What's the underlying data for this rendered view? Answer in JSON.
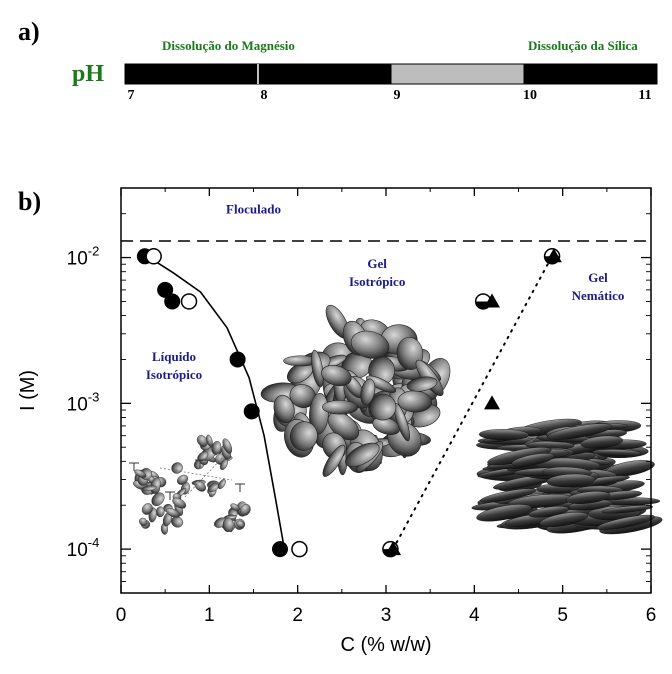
{
  "panel_a": {
    "label": "a)",
    "ph_label": "pH",
    "dissolution_left": "Dissolução do Magnésio",
    "dissolution_right": "Dissolução da Sílica",
    "ticks": [
      "7",
      "8",
      "9",
      "10",
      "11"
    ],
    "segments": [
      {
        "from": 7,
        "to": 8,
        "color": "#000000"
      },
      {
        "from": 8,
        "to": 9,
        "color": "#000000"
      },
      {
        "from": 9,
        "to": 10,
        "color": "#bdbdbd"
      },
      {
        "from": 10,
        "to": 11,
        "color": "#000000"
      }
    ]
  },
  "chart_data": {
    "type": "scatter",
    "panel_label": "b)",
    "xlabel": "C (% w/w)",
    "ylabel": "I (M)",
    "xlim": [
      0,
      6
    ],
    "ylim": [
      5e-05,
      0.03
    ],
    "y_scale": "log",
    "x_ticks": [
      0,
      1,
      2,
      3,
      4,
      5,
      6
    ],
    "x_tick_labels": [
      "0",
      "1",
      "2",
      "3",
      "4",
      "5",
      "6"
    ],
    "y_ticks": [
      0.0001,
      0.001,
      0.01
    ],
    "y_tick_labels": [
      {
        "base": "10",
        "exp": "-4"
      },
      {
        "base": "10",
        "exp": "-3"
      },
      {
        "base": "10",
        "exp": "-2"
      }
    ],
    "regions": [
      {
        "lines": [
          "Floculado"
        ],
        "x": 1.5,
        "y": 0.02
      },
      {
        "lines": [
          "Gel",
          "Isotrópico"
        ],
        "x": 2.9,
        "y": 0.0085
      },
      {
        "lines": [
          "Gel",
          "Nemático"
        ],
        "x": 5.4,
        "y": 0.0068
      },
      {
        "lines": [
          "Líquido",
          "Isotrópico"
        ],
        "x": 0.6,
        "y": 0.00195
      }
    ],
    "flocculation_line": {
      "y": 0.013,
      "style": "dashed"
    },
    "series": [
      {
        "marker": "filled-circle",
        "x": [
          0.27,
          0.5,
          0.58,
          1.32,
          1.48,
          1.8
        ],
        "y": [
          0.0102,
          0.006,
          0.005,
          0.002,
          0.00088,
          0.0001
        ]
      },
      {
        "marker": "open-circle",
        "x": [
          0.37,
          0.77,
          2.02
        ],
        "y": [
          0.0102,
          0.005,
          0.0001
        ]
      },
      {
        "marker": "half-circle",
        "x": [
          3.05,
          4.1,
          4.88
        ],
        "y": [
          0.0001,
          0.005,
          0.0102
        ]
      },
      {
        "marker": "filled-triangle",
        "x": [
          3.08,
          4.2,
          4.2,
          4.9
        ],
        "y": [
          0.0001,
          0.005,
          0.001,
          0.0102
        ]
      }
    ],
    "boundary_curve": {
      "style": "solid",
      "x": [
        0.3,
        0.6,
        0.9,
        1.2,
        1.45,
        1.62,
        1.75,
        1.85
      ],
      "y": [
        0.0102,
        0.0078,
        0.0058,
        0.0033,
        0.0015,
        0.0006,
        0.00022,
        0.0001
      ]
    },
    "boundary_dotted": {
      "style": "dotted",
      "x": [
        3.08,
        4.88
      ],
      "y": [
        0.0001,
        0.0102
      ]
    }
  }
}
